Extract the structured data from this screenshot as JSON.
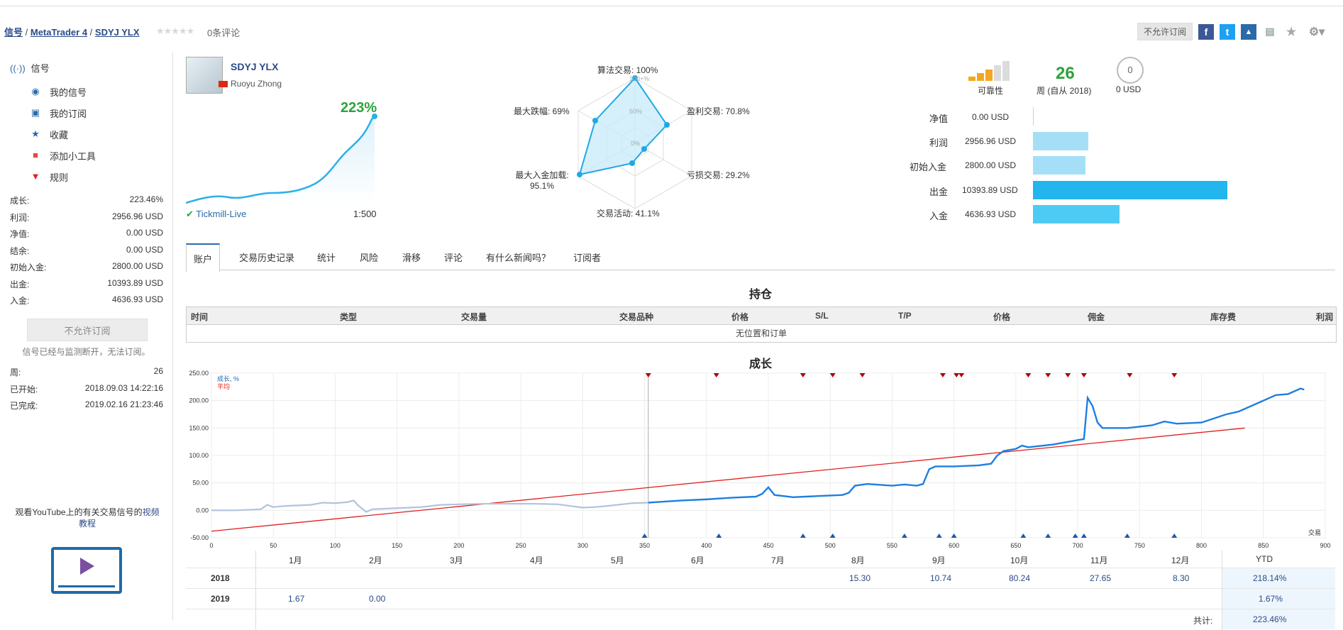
{
  "breadcrumb": {
    "root": "信号",
    "platform": "MetaTrader 4",
    "signal": "SDYJ YLX",
    "reviews": "0条评论",
    "stars": "★★★★★"
  },
  "header": {
    "subscribe_disabled": "不允许订阅"
  },
  "sidebar": {
    "title": "信号",
    "items": [
      {
        "label": "我的信号",
        "icon": "signal-icon"
      },
      {
        "label": "我的订阅",
        "icon": "subscription-icon"
      },
      {
        "label": "收藏",
        "icon": "star-icon"
      },
      {
        "label": "添加小工具",
        "icon": "widget-icon"
      },
      {
        "label": "规则",
        "icon": "bookmark-icon"
      }
    ],
    "stats": [
      {
        "label": "成长:",
        "value": "223.46%"
      },
      {
        "label": "利润:",
        "value": "2956.96 USD"
      },
      {
        "label": "净值:",
        "value": "0.00 USD"
      },
      {
        "label": "结余:",
        "value": "0.00 USD"
      },
      {
        "label": "初始入金:",
        "value": "2800.00 USD"
      },
      {
        "label": "出金:",
        "value": "10393.89 USD"
      },
      {
        "label": "入金:",
        "value": "4636.93 USD"
      }
    ],
    "subscribe_button": "不允许订阅",
    "note": "信号已经与监测断开，无法订阅。",
    "stats2": [
      {
        "label": "周:",
        "value": "26"
      },
      {
        "label": "已开始:",
        "value": "2018.09.03 14:22:16"
      },
      {
        "label": "已完成:",
        "value": "2019.02.16 21:23:46"
      }
    ],
    "youtube_text": "观看YouTube上的有关交易信号的",
    "youtube_link": "视频教程"
  },
  "signal": {
    "name": "SDYJ YLX",
    "author": "Ruoyu Zhong",
    "growth": "223%",
    "broker": "Tickmill-Live",
    "leverage": "1:500"
  },
  "radar": {
    "algo": "算法交易: 100%",
    "profit_trades": "盈利交易: 70.8%",
    "loss_trades": "亏损交易: 29.2%",
    "activity": "交易活动: 41.1%",
    "max_deposit_load_label": "最大入金加载:",
    "max_deposit_load_value": "95.1%",
    "max_drawdown": "最大跌幅: 69%",
    "ring_100": "100+%",
    "ring_50": "50%",
    "ring_0": "0%",
    "values": [
      100,
      70.8,
      29.2,
      41.1,
      95.1,
      69
    ]
  },
  "summary": {
    "reliability_label": "可靠性",
    "weeks": "26",
    "weeks_label": "周 (自从 2018)",
    "subscribers_count": "0",
    "subscribers_value": "0 USD"
  },
  "metrics": [
    {
      "label": "净值",
      "value": "0.00 USD",
      "amount": 0
    },
    {
      "label": "利润",
      "value": "2956.96 USD",
      "amount": 2956.96
    },
    {
      "label": "初始入金",
      "value": "2800.00 USD",
      "amount": 2800.0
    },
    {
      "label": "出金",
      "value": "10393.89 USD",
      "amount": 10393.89
    },
    {
      "label": "入金",
      "value": "4636.93 USD",
      "amount": 4636.93
    }
  ],
  "tabs": [
    "账户",
    "交易历史记录",
    "统计",
    "风险",
    "滑移",
    "评论",
    "有什么新闻吗？",
    "订阅者"
  ],
  "positions": {
    "title": "持仓",
    "columns": [
      "时间",
      "类型",
      "交易量",
      "交易品种",
      "价格",
      "S/L",
      "T/P",
      "价格",
      "佣金",
      "库存费",
      "利润"
    ],
    "empty": "无位置和订单"
  },
  "growth_chart": {
    "title": "成长",
    "legend_growth": "成长, %",
    "legend_avg": "平均",
    "trades_label": "交易",
    "colors": {
      "growth": "#1e7fe0",
      "history": "#b0c4dc",
      "average": "#e02020"
    }
  },
  "chart_data": {
    "type": "line",
    "title": "成长",
    "xlim": [
      0,
      900
    ],
    "ylim": [
      -50,
      250
    ],
    "xticks": [
      0,
      50,
      100,
      150,
      200,
      250,
      300,
      350,
      400,
      450,
      500,
      550,
      600,
      650,
      700,
      750,
      800,
      850,
      900
    ],
    "yticks": [
      "-50.00",
      "0.00",
      "50.00",
      "100.00",
      "150.00",
      "200.00",
      "250.00"
    ],
    "grid": true,
    "legend": "top-left",
    "series": [
      {
        "name": "成长, %",
        "points": [
          [
            0,
            0
          ],
          [
            20,
            0
          ],
          [
            40,
            2
          ],
          [
            45,
            10
          ],
          [
            50,
            6
          ],
          [
            60,
            8
          ],
          [
            80,
            10
          ],
          [
            90,
            14
          ],
          [
            100,
            13
          ],
          [
            110,
            15
          ],
          [
            115,
            18
          ],
          [
            118,
            10
          ],
          [
            125,
            -3
          ],
          [
            130,
            2
          ],
          [
            140,
            3
          ],
          [
            160,
            5
          ],
          [
            170,
            6
          ],
          [
            185,
            10
          ],
          [
            200,
            11
          ],
          [
            220,
            12
          ],
          [
            240,
            12
          ],
          [
            260,
            12
          ],
          [
            280,
            11
          ],
          [
            300,
            5
          ],
          [
            310,
            6
          ],
          [
            320,
            8
          ],
          [
            340,
            13
          ],
          [
            353,
            14
          ],
          [
            360,
            15
          ],
          [
            380,
            18
          ],
          [
            400,
            20
          ],
          [
            420,
            23
          ],
          [
            440,
            25
          ],
          [
            445,
            30
          ],
          [
            450,
            42
          ],
          [
            455,
            28
          ],
          [
            470,
            24
          ],
          [
            490,
            26
          ],
          [
            510,
            28
          ],
          [
            515,
            32
          ],
          [
            520,
            45
          ],
          [
            530,
            48
          ],
          [
            550,
            45
          ],
          [
            560,
            47
          ],
          [
            570,
            45
          ],
          [
            575,
            48
          ],
          [
            580,
            75
          ],
          [
            585,
            80
          ],
          [
            600,
            80
          ],
          [
            620,
            82
          ],
          [
            630,
            85
          ],
          [
            635,
            100
          ],
          [
            640,
            108
          ],
          [
            650,
            112
          ],
          [
            655,
            118
          ],
          [
            660,
            115
          ],
          [
            680,
            120
          ],
          [
            700,
            128
          ],
          [
            705,
            130
          ],
          [
            708,
            205
          ],
          [
            712,
            190
          ],
          [
            716,
            160
          ],
          [
            720,
            150
          ],
          [
            740,
            150
          ],
          [
            760,
            155
          ],
          [
            770,
            162
          ],
          [
            780,
            158
          ],
          [
            800,
            160
          ],
          [
            820,
            175
          ],
          [
            830,
            180
          ],
          [
            850,
            200
          ],
          [
            860,
            210
          ],
          [
            870,
            212
          ],
          [
            880,
            222
          ],
          [
            883,
            220
          ]
        ]
      },
      {
        "name": "平均",
        "points": [
          [
            0,
            -38
          ],
          [
            835,
            150
          ]
        ]
      }
    ]
  },
  "monthly": {
    "months": [
      "1月",
      "2月",
      "3月",
      "4月",
      "5月",
      "6月",
      "7月",
      "8月",
      "9月",
      "10月",
      "11月",
      "12月"
    ],
    "ytd": "YTD",
    "rows": [
      {
        "year": "2018",
        "values": [
          "",
          "",
          "",
          "",
          "",
          "",
          "",
          "15.30",
          "10.74",
          "80.24",
          "27.65",
          "8.30"
        ],
        "ytd": "218.14%"
      },
      {
        "year": "2019",
        "values": [
          "1.67",
          "0.00",
          "",
          "",
          "",
          "",
          "",
          "",
          "",
          "",
          "",
          ""
        ],
        "ytd": "1.67%"
      }
    ],
    "total_label": "共计:",
    "total": "223.46%"
  }
}
